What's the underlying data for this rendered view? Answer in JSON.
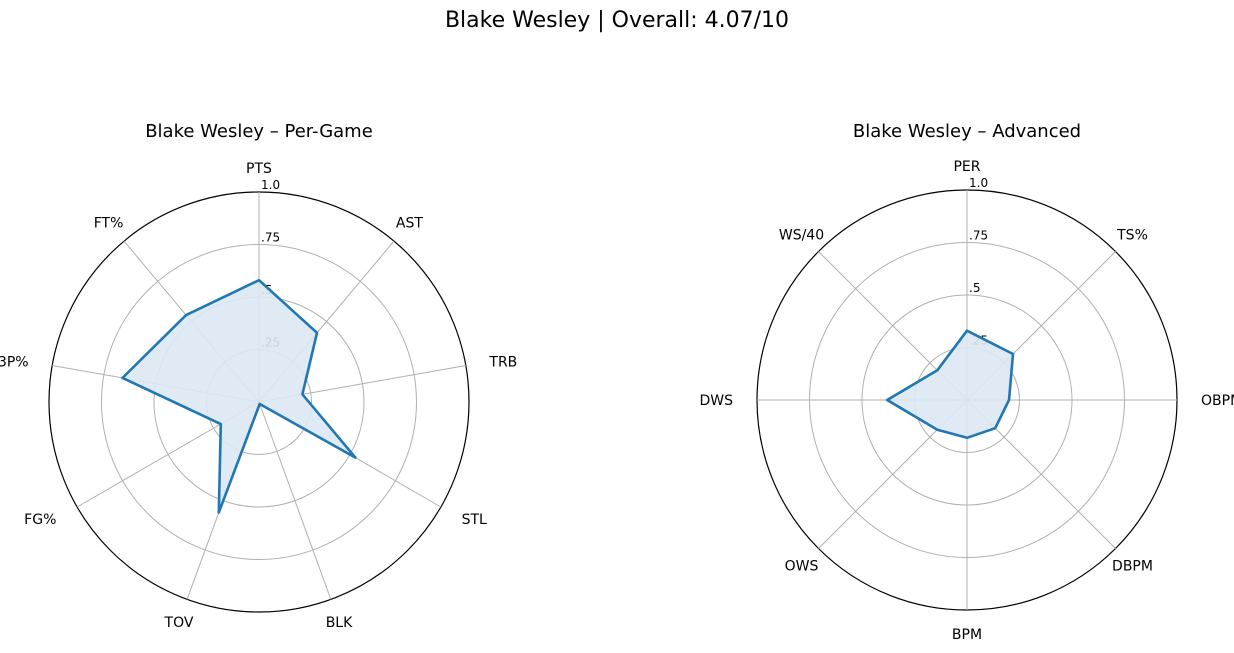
{
  "figure_title": "Blake Wesley | Overall: 4.07/10",
  "colors": {
    "line": "#1f77b4",
    "fill": "#dde8f3",
    "grid": "#b0b0b0",
    "frame": "#000000"
  },
  "chart_data": [
    {
      "type": "radar",
      "title": "Blake Wesley – Per-Game",
      "rlim": [
        0,
        1.0
      ],
      "r_ticks": [
        0.25,
        0.5,
        0.75,
        1.0
      ],
      "r_tick_labels": [
        ".25",
        ".5",
        ".75",
        "1.0"
      ],
      "categories": [
        "PTS",
        "AST",
        "TRB",
        "STL",
        "BLK",
        "TOV",
        "FG%",
        "3P%",
        "FT%"
      ],
      "values": [
        0.58,
        0.43,
        0.21,
        0.53,
        0.01,
        0.56,
        0.21,
        0.66,
        0.54
      ]
    },
    {
      "type": "radar",
      "title": "Blake Wesley – Advanced",
      "rlim": [
        0,
        1.0
      ],
      "r_ticks": [
        0.25,
        0.5,
        0.75,
        1.0
      ],
      "r_tick_labels": [
        ".25",
        ".5",
        ".75",
        "1.0"
      ],
      "categories": [
        "PER",
        "TS%",
        "OBPM",
        "DBPM",
        "BPM",
        "OWS",
        "DWS",
        "WS/40"
      ],
      "values": [
        0.33,
        0.31,
        0.2,
        0.19,
        0.18,
        0.2,
        0.38,
        0.2
      ]
    }
  ]
}
